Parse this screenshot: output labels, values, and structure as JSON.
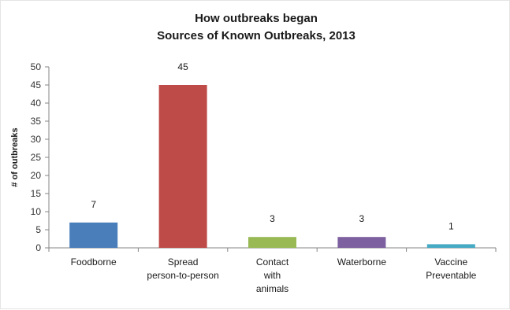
{
  "chart_data": {
    "type": "bar",
    "title": [
      "How outbreaks began",
      "Sources of Known Outbreaks, 2013"
    ],
    "xlabel": "",
    "ylabel": "# of outbreaks",
    "ylim": [
      0,
      50
    ],
    "yticks": [
      0,
      5,
      10,
      15,
      20,
      25,
      30,
      35,
      40,
      45,
      50
    ],
    "grid": false,
    "legend": "none",
    "data_labels": true,
    "categories": [
      [
        "Foodborne"
      ],
      [
        "Spread",
        "person-to-person"
      ],
      [
        "Contact",
        "with",
        "animals"
      ],
      [
        "Waterborne"
      ],
      [
        "Vaccine",
        "Preventable"
      ]
    ],
    "values": [
      7,
      45,
      3,
      3,
      1
    ],
    "colors": [
      "#4a7ebb",
      "#be4b48",
      "#98b954",
      "#7d60a0",
      "#46aac5"
    ]
  }
}
